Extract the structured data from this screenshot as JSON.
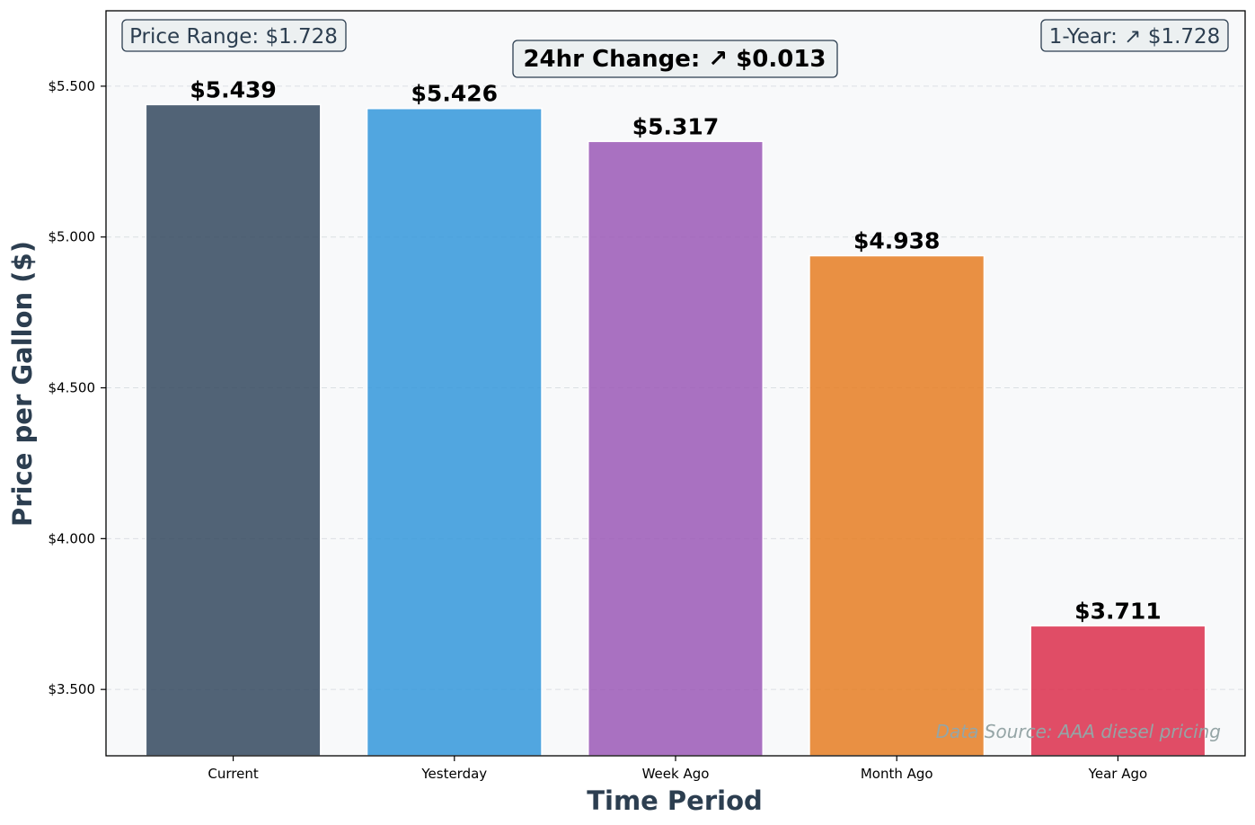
{
  "chart_data": {
    "type": "bar",
    "categories": [
      "Current",
      "Yesterday",
      "Week Ago",
      "Month Ago",
      "Year Ago"
    ],
    "values": [
      5.439,
      5.426,
      5.317,
      4.938,
      3.711
    ],
    "value_labels": [
      "$5.439",
      "$5.426",
      "$5.317",
      "$4.938",
      "$3.711"
    ],
    "colors": [
      "#34495e",
      "#3498db",
      "#9b59b6",
      "#e67e22",
      "#dc2f4b"
    ],
    "xlabel": "Time Period",
    "ylabel": "Price per Gallon ($)",
    "ylim": [
      3.28,
      5.75
    ],
    "yticks": [
      3.5,
      4.0,
      4.5,
      5.0,
      5.5
    ],
    "ytick_labels": [
      "$3.500",
      "$4.000",
      "$4.500",
      "$5.000",
      "$5.500"
    ],
    "grid": "horizontal dashed",
    "annotations": {
      "price_range": "Price Range: $1.728",
      "one_year": "1-Year: ↗ $1.728",
      "change_24hr": "24hr Change: ↗ $0.013",
      "source": "Data Source: AAA diesel pricing"
    }
  }
}
